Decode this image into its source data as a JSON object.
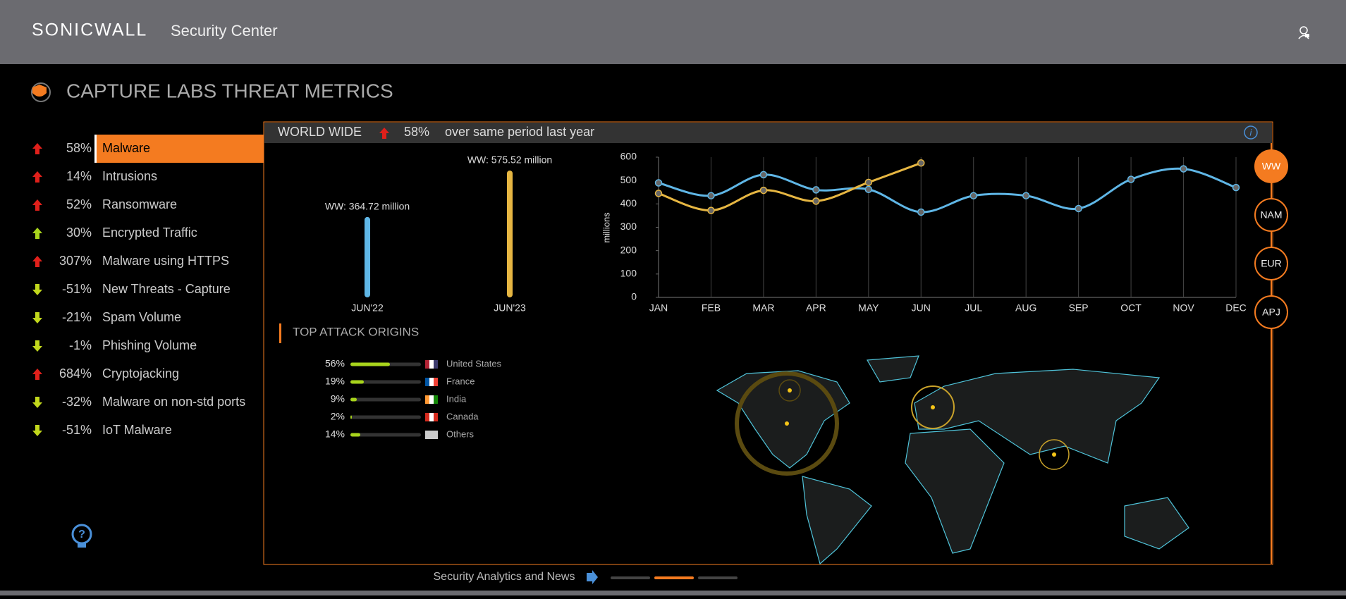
{
  "header": {
    "brand": "SONICWALL",
    "product": "Security Center"
  },
  "page_title": "CAPTURE LABS THREAT METRICS",
  "metrics": [
    {
      "value": "58%",
      "label": "Malware",
      "trend": "up",
      "color": "#e0201b",
      "active": true
    },
    {
      "value": "14%",
      "label": "Intrusions",
      "trend": "up",
      "color": "#e0201b"
    },
    {
      "value": "52%",
      "label": "Ransomware",
      "trend": "up",
      "color": "#e0201b"
    },
    {
      "value": "30%",
      "label": "Encrypted Traffic",
      "trend": "up",
      "color": "#a8d41c"
    },
    {
      "value": "307%",
      "label": "Malware using HTTPS",
      "trend": "up",
      "color": "#e0201b"
    },
    {
      "value": "-51%",
      "label": "New Threats - Capture",
      "trend": "down",
      "color": "#c2d81c"
    },
    {
      "value": "-21%",
      "label": "Spam Volume",
      "trend": "down",
      "color": "#c2d81c"
    },
    {
      "value": "-1%",
      "label": "Phishing Volume",
      "trend": "down",
      "color": "#c2d81c"
    },
    {
      "value": "684%",
      "label": "Cryptojacking",
      "trend": "up",
      "color": "#e0201b"
    },
    {
      "value": "-32%",
      "label": "Malware on non-std ports",
      "trend": "down",
      "color": "#c2d81c"
    },
    {
      "value": "-51%",
      "label": "IoT Malware",
      "trend": "down",
      "color": "#c2d81c"
    }
  ],
  "panel": {
    "region": "WORLD WIDE",
    "change": "58%",
    "trend": "up",
    "note": "over same period last year"
  },
  "comparison": {
    "type": "bar",
    "categories": [
      "JUN'22",
      "JUN'23"
    ],
    "values": [
      364.72,
      575.52
    ],
    "value_labels": [
      "WW: 364.72 million",
      "WW: 575.52 million"
    ],
    "colors": [
      "#5fb6e6",
      "#e6b642"
    ]
  },
  "trend_chart": {
    "type": "line",
    "y_label": "millions",
    "categories": [
      "JAN",
      "FEB",
      "MAR",
      "APR",
      "MAY",
      "JUN",
      "JUL",
      "AUG",
      "SEP",
      "OCT",
      "NOV",
      "DEC"
    ],
    "series": [
      {
        "color": "#5fb6e6",
        "values": [
          490,
          435,
          525,
          460,
          462,
          365,
          435,
          435,
          380,
          505,
          550,
          470
        ]
      },
      {
        "color": "#e6b642",
        "values": [
          445,
          372,
          458,
          412,
          492,
          575,
          null,
          null,
          null,
          null,
          null,
          null
        ]
      }
    ],
    "ylim": [
      0,
      600
    ],
    "yticks": [
      0,
      100,
      200,
      300,
      400,
      500,
      600
    ],
    "grid": true
  },
  "attack_origins": {
    "title": "TOP ATTACK ORIGINS",
    "type": "bar",
    "categories": [
      "United States",
      "France",
      "India",
      "Canada",
      "Others"
    ],
    "values": [
      56,
      19,
      9,
      2,
      14
    ],
    "value_labels": [
      "56%",
      "19%",
      "9%",
      "2%",
      "14%"
    ],
    "xlim": [
      0,
      100
    ],
    "color": "#a8d41c"
  },
  "regions": {
    "items": [
      "WW",
      "NAM",
      "EUR",
      "APJ"
    ],
    "active": 0
  },
  "footer": {
    "text": "Security Analytics and News"
  }
}
